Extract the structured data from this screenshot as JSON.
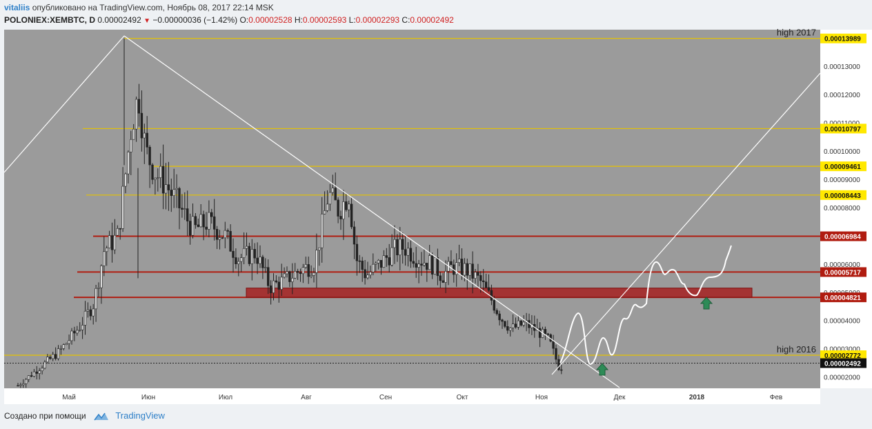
{
  "header": {
    "author": "vitaliis",
    "published": "опубликовано на TradingView.com, Ноябрь 08, 2017 22:14 MSK",
    "symbol": "POLONIEX:XEMBTC, D",
    "price": "0.00002492",
    "change": "−0.00000036 (−1.42%)",
    "o_label": "O:",
    "o_value": "0.00002528",
    "h_label": "H:",
    "h_value": "0.00002593",
    "l_label": "L:",
    "l_value": "0.00002293",
    "c_label": "C:",
    "c_value": "0.00002492"
  },
  "footer": {
    "created_with": "Создано при помощи",
    "brand": "TradingView"
  },
  "colors": {
    "chart_bg": "#9b9b9b",
    "yellow_line": "#e6c200",
    "red_line": "#b01c10",
    "red_zone": "#a52a2a",
    "candle": "#222222",
    "drawing": "#ffffff",
    "arrow": "#2e8b57",
    "axis_bg": "#ffffff"
  },
  "chart_data": {
    "type": "candlestick",
    "title": "POLONIEX:XEMBTC, D",
    "x_axis_ticks": [
      "Май",
      "Июн",
      "Июл",
      "Авг",
      "Сен",
      "Окт",
      "Ноя",
      "Дек",
      "2018",
      "Фев"
    ],
    "y_axis_ticks": [
      "0.00013000",
      "0.00012000",
      "0.00011000",
      "0.00010000",
      "0.00009000",
      "0.00008000",
      "0.00006000",
      "0.00005000",
      "0.00004000",
      "0.00003000",
      "0.00002000"
    ],
    "y_range": [
      1.6e-05,
      0.000143
    ],
    "horizontal_levels": [
      {
        "value": 0.00013989,
        "label": "0.00013989",
        "style": "yellow",
        "note": "high 2017"
      },
      {
        "value": 0.00010797,
        "label": "0.00010797",
        "style": "yellow"
      },
      {
        "value": 9.461e-05,
        "label": "0.00009461",
        "style": "yellow"
      },
      {
        "value": 8.443e-05,
        "label": "0.00008443",
        "style": "yellow"
      },
      {
        "value": 6.984e-05,
        "label": "0.00006984",
        "style": "red"
      },
      {
        "value": 5.717e-05,
        "label": "0.00005717",
        "style": "red"
      },
      {
        "value": 4.821e-05,
        "label": "0.00004821",
        "style": "red"
      },
      {
        "value": 2.772e-05,
        "label": "0.00002772",
        "style": "yellow",
        "note": "high 2016"
      },
      {
        "value": 2.492e-05,
        "label": "0.00002492",
        "style": "current"
      }
    ],
    "support_zone": {
      "from": 4.821e-05,
      "to": 5.15e-05
    },
    "close_path_approx": [
      [
        0,
        1.7e-05
      ],
      [
        30,
        2.3e-05
      ],
      [
        60,
        2.9e-05
      ],
      [
        90,
        3.8e-05
      ],
      [
        110,
        4.6e-05
      ],
      [
        125,
        6.5e-05
      ],
      [
        145,
        7e-05
      ],
      [
        165,
        0.00011
      ],
      [
        175,
        0.00012
      ],
      [
        185,
        0.0001
      ],
      [
        200,
        9.2e-05
      ],
      [
        215,
        8.8e-05
      ],
      [
        235,
        8e-05
      ],
      [
        255,
        7.2e-05
      ],
      [
        275,
        7.5e-05
      ],
      [
        300,
        7e-05
      ],
      [
        320,
        6.2e-05
      ],
      [
        345,
        6.4e-05
      ],
      [
        365,
        5.2e-05
      ],
      [
        385,
        5.4e-05
      ],
      [
        410,
        5.8e-05
      ],
      [
        430,
        6e-05
      ],
      [
        450,
        8.5e-05
      ],
      [
        465,
        7.9e-05
      ],
      [
        480,
        8.5e-05
      ],
      [
        490,
        6.2e-05
      ],
      [
        505,
        5.6e-05
      ],
      [
        525,
        6e-05
      ],
      [
        545,
        6.5e-05
      ],
      [
        560,
        6.6e-05
      ],
      [
        580,
        6.2e-05
      ],
      [
        600,
        6e-05
      ],
      [
        615,
        5.6e-05
      ],
      [
        630,
        5.9e-05
      ],
      [
        650,
        5.8e-05
      ],
      [
        670,
        5.4e-05
      ],
      [
        685,
        4.8e-05
      ],
      [
        700,
        4.1e-05
      ],
      [
        715,
        3.7e-05
      ],
      [
        735,
        3.9e-05
      ],
      [
        755,
        3.6e-05
      ],
      [
        770,
        3.3e-05
      ],
      [
        785,
        2.3e-05
      ],
      [
        800,
        2.6e-05
      ],
      [
        808,
        2.49e-05
      ]
    ],
    "annotations": [
      "high 2017",
      "high 2016"
    ]
  }
}
